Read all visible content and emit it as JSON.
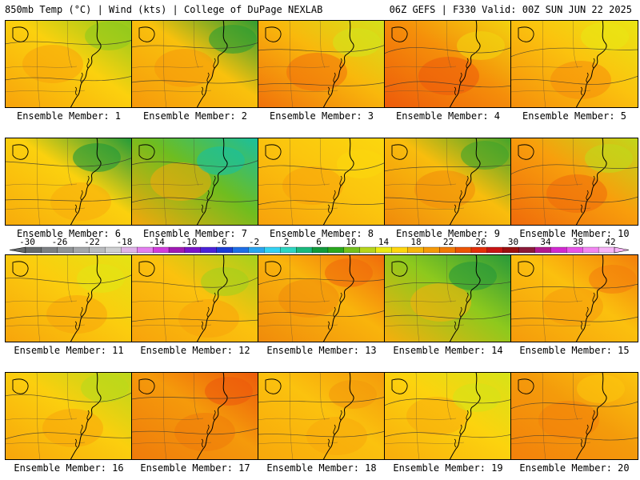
{
  "header": {
    "left": "850mb Temp (°C) | Wind (kts) | College of DuPage NEXLAB",
    "right": "06Z GEFS | F330 Valid: 00Z SUN JUN 22 2025"
  },
  "colorbar": {
    "labels": [
      "-30",
      "-26",
      "-22",
      "-18",
      "-14",
      "-10",
      "-6",
      "-2",
      "2",
      "6",
      "10",
      "14",
      "18",
      "22",
      "26",
      "30",
      "34",
      "38",
      "42"
    ],
    "colors": [
      "#666a6c",
      "#7c8083",
      "#909497",
      "#a4a7aa",
      "#b9bbbe",
      "#cfd0d2",
      "#e0b3e8",
      "#e47ff0",
      "#d23ddc",
      "#a01ab3",
      "#7a14c8",
      "#4b22d8",
      "#1b3cd6",
      "#1f6ee6",
      "#2aa5f0",
      "#34d2f2",
      "#2ed6c2",
      "#1bb87d",
      "#129a3c",
      "#2aa81e",
      "#74c11d",
      "#b6d51c",
      "#eaea12",
      "#fed60f",
      "#f8b60d",
      "#f59a09",
      "#f17a07",
      "#ec5506",
      "#e4300a",
      "#c81414",
      "#9b1010",
      "#8b1a3a",
      "#b21a8f",
      "#d12ad0",
      "#e855e8",
      "#f286f2",
      "#f7b4f7"
    ]
  },
  "panels": [
    {
      "label": "Ensemble Member: 1",
      "colors": [
        "#f8a20b",
        "#fbd10e",
        "#8fca1d"
      ]
    },
    {
      "label": "Ensemble Member: 2",
      "colors": [
        "#f6980b",
        "#f9c10d",
        "#2c9c32"
      ]
    },
    {
      "label": "Ensemble Member: 3",
      "colors": [
        "#f0700b",
        "#f9b80c",
        "#d3e21a"
      ]
    },
    {
      "label": "Ensemble Member: 4",
      "colors": [
        "#ed5a0b",
        "#f58f0a",
        "#f2d40f"
      ]
    },
    {
      "label": "Ensemble Member: 5",
      "colors": [
        "#f58d0b",
        "#fbc30e",
        "#e9e614"
      ]
    },
    {
      "label": "Ensemble Member: 6",
      "colors": [
        "#f8ab0c",
        "#fbd10e",
        "#1f9a3a"
      ]
    },
    {
      "label": "Ensemble Member: 7",
      "colors": [
        "#f7a70b",
        "#6fbd1f",
        "#18bfa0"
      ]
    },
    {
      "label": "Ensemble Member: 8",
      "colors": [
        "#f7a10b",
        "#fbc50e",
        "#fbd70e"
      ]
    },
    {
      "label": "Ensemble Member: 9",
      "colors": [
        "#f08a0b",
        "#f9bd0d",
        "#3fa42c"
      ]
    },
    {
      "label": "Ensemble Member: 10",
      "colors": [
        "#ef6a0b",
        "#f89f0c",
        "#c0d81a"
      ]
    },
    {
      "label": "Ensemble Member: 11",
      "colors": [
        "#f7a40b",
        "#fbcd0e",
        "#e3e414"
      ]
    },
    {
      "label": "Ensemble Member: 12",
      "colors": [
        "#f7a20b",
        "#fbc20e",
        "#a4d11c"
      ]
    },
    {
      "label": "Ensemble Member: 13",
      "colors": [
        "#f08a0b",
        "#f9b40c",
        "#f06a0b"
      ]
    },
    {
      "label": "Ensemble Member: 14",
      "colors": [
        "#f8ae0c",
        "#8ec91d",
        "#26983a"
      ]
    },
    {
      "label": "Ensemble Member: 15",
      "colors": [
        "#f59a0b",
        "#fbc00e",
        "#f37f0b"
      ]
    },
    {
      "label": "Ensemble Member: 16",
      "colors": [
        "#f8a40b",
        "#fbcf0e",
        "#b9d81b"
      ]
    },
    {
      "label": "Ensemble Member: 17",
      "colors": [
        "#ef7a0b",
        "#f59a0b",
        "#ec5a0b"
      ]
    },
    {
      "label": "Ensemble Member: 18",
      "colors": [
        "#f8a70b",
        "#fbc20e",
        "#f49a0b"
      ]
    },
    {
      "label": "Ensemble Member: 19",
      "colors": [
        "#f8ac0c",
        "#fcd30e",
        "#d6e318"
      ]
    },
    {
      "label": "Ensemble Member: 20",
      "colors": [
        "#f3800b",
        "#f49b0b",
        "#fbc50e"
      ]
    }
  ]
}
